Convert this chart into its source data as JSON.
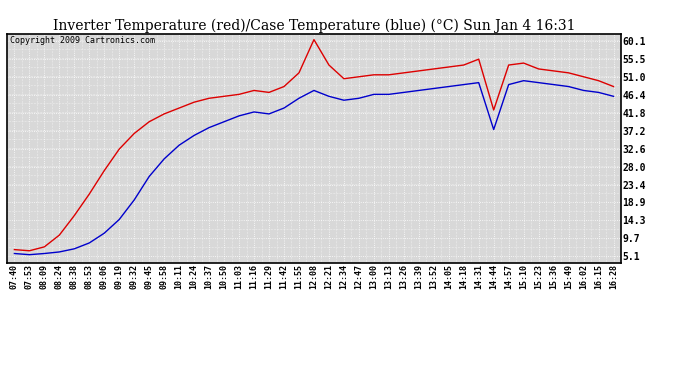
{
  "title": "Inverter Temperature (red)/Case Temperature (blue) (°C) Sun Jan 4 16:31",
  "copyright": "Copyright 2009 Cartronics.com",
  "yticks": [
    5.1,
    9.7,
    14.3,
    18.9,
    23.4,
    28.0,
    32.6,
    37.2,
    41.8,
    46.4,
    51.0,
    55.5,
    60.1
  ],
  "ylim": [
    3.5,
    62.0
  ],
  "xtick_labels": [
    "07:40",
    "07:53",
    "08:09",
    "08:24",
    "08:38",
    "08:53",
    "09:06",
    "09:19",
    "09:32",
    "09:45",
    "09:58",
    "10:11",
    "10:24",
    "10:37",
    "10:50",
    "11:03",
    "11:16",
    "11:29",
    "11:42",
    "11:55",
    "12:08",
    "12:21",
    "12:34",
    "12:47",
    "13:00",
    "13:13",
    "13:26",
    "13:39",
    "13:52",
    "14:05",
    "14:18",
    "14:31",
    "14:44",
    "14:57",
    "15:10",
    "15:23",
    "15:36",
    "15:49",
    "16:02",
    "16:15",
    "16:28"
  ],
  "bg_color": "#ffffff",
  "plot_bg": "#d8d8d8",
  "grid_color": "#ffffff",
  "red_color": "#dd0000",
  "blue_color": "#0000cc",
  "red_data": [
    6.8,
    6.5,
    7.5,
    10.5,
    15.5,
    21.0,
    27.0,
    32.5,
    36.5,
    39.5,
    41.5,
    43.0,
    44.5,
    45.5,
    46.0,
    46.5,
    47.5,
    47.0,
    48.5,
    52.0,
    60.5,
    54.0,
    50.5,
    51.0,
    51.5,
    51.5,
    52.0,
    52.5,
    53.0,
    53.5,
    54.0,
    55.5,
    42.5,
    54.0,
    54.5,
    53.0,
    52.5,
    52.0,
    51.0,
    50.0,
    48.5
  ],
  "blue_data": [
    5.8,
    5.5,
    5.8,
    6.2,
    7.0,
    8.5,
    11.0,
    14.5,
    19.5,
    25.5,
    30.0,
    33.5,
    36.0,
    38.0,
    39.5,
    41.0,
    42.0,
    41.5,
    43.0,
    45.5,
    47.5,
    46.0,
    45.0,
    45.5,
    46.5,
    46.5,
    47.0,
    47.5,
    48.0,
    48.5,
    49.0,
    49.5,
    37.5,
    49.0,
    50.0,
    49.5,
    49.0,
    48.5,
    47.5,
    47.0,
    46.0
  ],
  "figwidth": 6.9,
  "figheight": 3.75,
  "dpi": 100,
  "title_fontsize": 10,
  "tick_fontsize": 6,
  "ytick_fontsize": 7,
  "copyright_fontsize": 6
}
